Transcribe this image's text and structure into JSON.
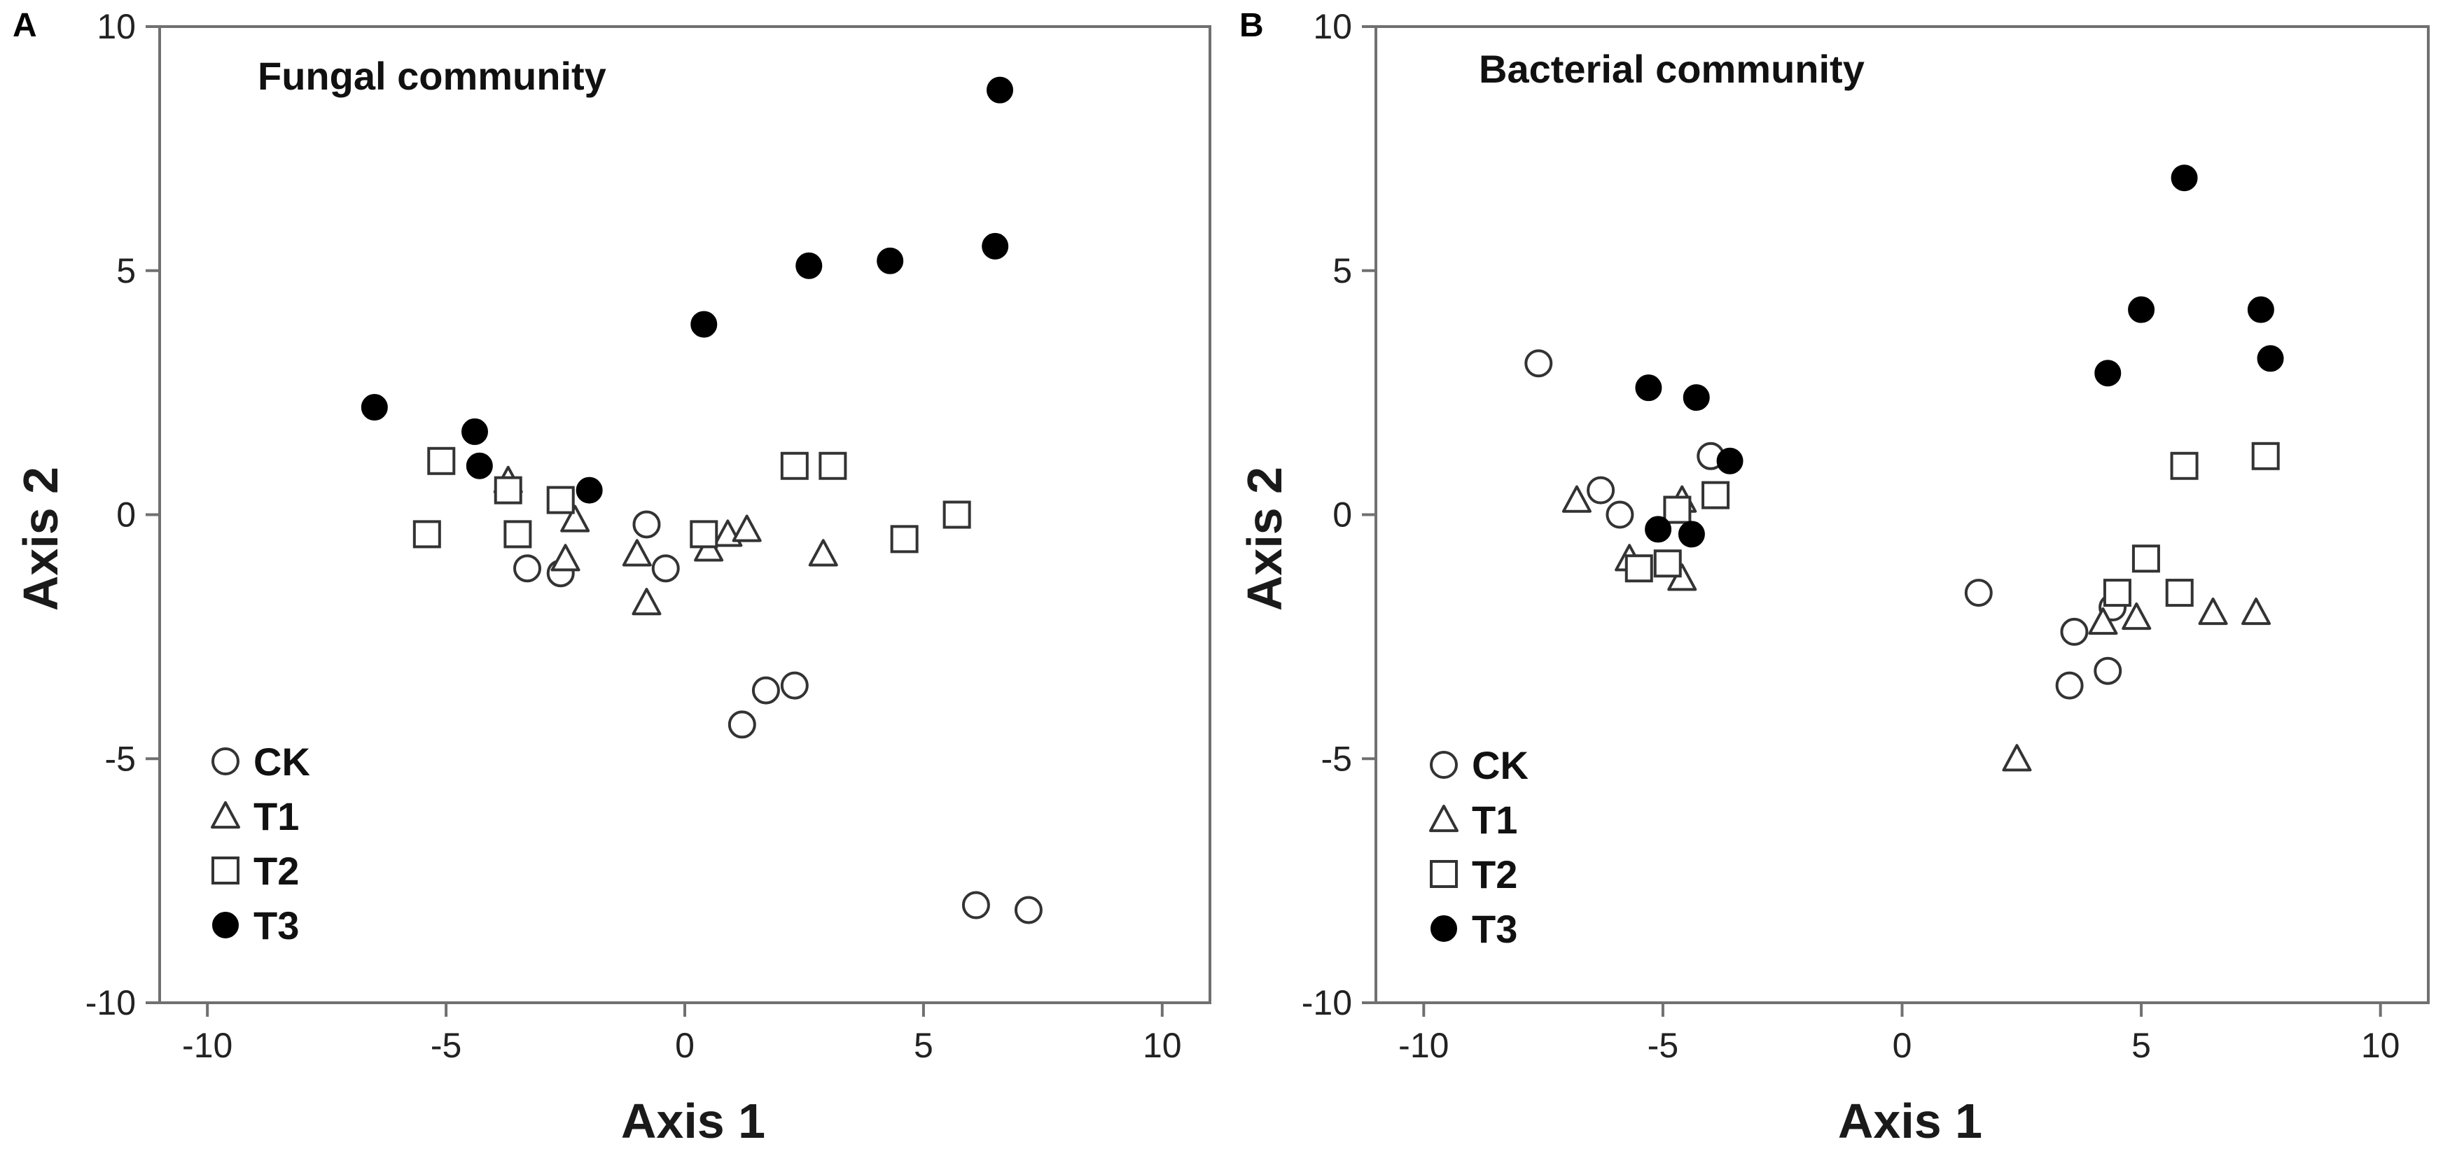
{
  "colors": {
    "frame": "#707070",
    "marker_stroke": "#333333",
    "filled": "#000000",
    "background": "#ffffff"
  },
  "legend": [
    {
      "label": "CK",
      "marker": "open-circle"
    },
    {
      "label": "T1",
      "marker": "open-triangle"
    },
    {
      "label": "T2",
      "marker": "open-square"
    },
    {
      "label": "T3",
      "marker": "filled-circle"
    }
  ],
  "chart_data": [
    {
      "type": "scatter",
      "panel_label": "A",
      "title": "Fungal community",
      "xlabel": "Axis 1",
      "ylabel": "Axis 2",
      "xlim": [
        -11,
        11
      ],
      "ylim": [
        -10,
        10
      ],
      "xticks": [
        -10,
        -5,
        0,
        5,
        10
      ],
      "yticks": [
        -10,
        -5,
        0,
        5,
        10
      ],
      "legend_position": "bottom-left",
      "series": [
        {
          "name": "CK",
          "marker": "open-circle",
          "points": [
            [
              -3.3,
              -1.1
            ],
            [
              -2.6,
              -1.2
            ],
            [
              -0.8,
              -0.2
            ],
            [
              -0.4,
              -1.1
            ],
            [
              1.2,
              -4.3
            ],
            [
              1.7,
              -3.6
            ],
            [
              2.3,
              -3.5
            ],
            [
              6.1,
              -8.0
            ],
            [
              7.2,
              -8.1
            ]
          ]
        },
        {
          "name": "T1",
          "marker": "open-triangle",
          "points": [
            [
              -3.7,
              0.7
            ],
            [
              -2.5,
              -0.9
            ],
            [
              -2.3,
              -0.1
            ],
            [
              -1.0,
              -0.8
            ],
            [
              -0.8,
              -1.8
            ],
            [
              0.5,
              -0.7
            ],
            [
              0.9,
              -0.4
            ],
            [
              1.3,
              -0.3
            ],
            [
              2.9,
              -0.8
            ]
          ]
        },
        {
          "name": "T2",
          "marker": "open-square",
          "points": [
            [
              -5.4,
              -0.4
            ],
            [
              -5.1,
              1.1
            ],
            [
              -3.7,
              0.5
            ],
            [
              -3.5,
              -0.4
            ],
            [
              -2.6,
              0.3
            ],
            [
              0.4,
              -0.4
            ],
            [
              2.3,
              1.0
            ],
            [
              3.1,
              1.0
            ],
            [
              4.6,
              -0.5
            ],
            [
              5.7,
              0.0
            ]
          ]
        },
        {
          "name": "T3",
          "marker": "filled-circle",
          "points": [
            [
              -6.5,
              2.2
            ],
            [
              -4.4,
              1.7
            ],
            [
              -4.3,
              1.0
            ],
            [
              -2.0,
              0.5
            ],
            [
              0.4,
              3.9
            ],
            [
              2.6,
              5.1
            ],
            [
              4.3,
              5.2
            ],
            [
              6.5,
              5.5
            ],
            [
              6.6,
              8.7
            ]
          ]
        }
      ]
    },
    {
      "type": "scatter",
      "panel_label": "B",
      "title": "Bacterial community",
      "xlabel": "Axis 1",
      "ylabel": "Axis 2",
      "xlim": [
        -11,
        11
      ],
      "ylim": [
        -10,
        10
      ],
      "xticks": [
        -10,
        -5,
        0,
        5,
        10
      ],
      "yticks": [
        -10,
        -5,
        0,
        5,
        10
      ],
      "legend_position": "bottom-left",
      "series": [
        {
          "name": "CK",
          "marker": "open-circle",
          "points": [
            [
              -7.6,
              3.1
            ],
            [
              -6.3,
              0.5
            ],
            [
              -5.9,
              0.0
            ],
            [
              -4.0,
              1.2
            ],
            [
              1.6,
              -1.6
            ],
            [
              3.5,
              -3.5
            ],
            [
              3.6,
              -2.4
            ],
            [
              4.3,
              -3.2
            ],
            [
              4.4,
              -1.9
            ]
          ]
        },
        {
          "name": "T1",
          "marker": "open-triangle",
          "points": [
            [
              -6.8,
              0.3
            ],
            [
              -5.7,
              -0.9
            ],
            [
              -4.6,
              0.3
            ],
            [
              -4.6,
              -1.3
            ],
            [
              2.4,
              -5.0
            ],
            [
              4.2,
              -2.2
            ],
            [
              4.9,
              -2.1
            ],
            [
              6.5,
              -2.0
            ],
            [
              7.4,
              -2.0
            ]
          ]
        },
        {
          "name": "T2",
          "marker": "open-square",
          "points": [
            [
              -5.5,
              -1.1
            ],
            [
              -4.9,
              -1.0
            ],
            [
              -4.7,
              0.1
            ],
            [
              -3.9,
              0.4
            ],
            [
              4.5,
              -1.6
            ],
            [
              5.1,
              -0.9
            ],
            [
              5.8,
              -1.6
            ],
            [
              5.9,
              1.0
            ],
            [
              7.6,
              1.2
            ]
          ]
        },
        {
          "name": "T3",
          "marker": "filled-circle",
          "points": [
            [
              -5.3,
              2.6
            ],
            [
              -4.3,
              2.4
            ],
            [
              -3.6,
              1.1
            ],
            [
              -5.1,
              -0.3
            ],
            [
              -4.4,
              -0.4
            ],
            [
              4.3,
              2.9
            ],
            [
              5.0,
              4.2
            ],
            [
              5.9,
              6.9
            ],
            [
              7.5,
              4.2
            ],
            [
              7.7,
              3.2
            ]
          ]
        }
      ]
    }
  ]
}
